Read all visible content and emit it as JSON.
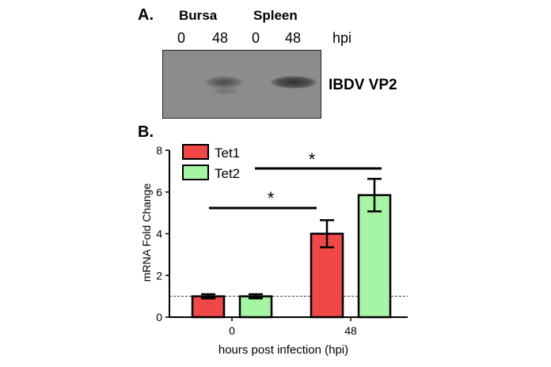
{
  "panel_a": {
    "label": "A.",
    "tissues": [
      "Bursa",
      "Spleen"
    ],
    "lanes": [
      "0",
      "48",
      "0",
      "48"
    ],
    "unit": "hpi",
    "band_label": "IBDV VP2"
  },
  "panel_b": {
    "label": "B."
  },
  "colors": {
    "tet1": "#f04747",
    "tet2": "#a5f5a5",
    "blot_bg": "#8c8c8c",
    "band": "#3a3a3a"
  },
  "chart_data": {
    "type": "bar",
    "categories": [
      "0",
      "48"
    ],
    "series": [
      {
        "name": "Tet1",
        "values": [
          1.0,
          4.0
        ],
        "errors": [
          0.1,
          0.65
        ]
      },
      {
        "name": "Tet2",
        "values": [
          1.0,
          5.85
        ],
        "errors": [
          0.1,
          0.78
        ]
      }
    ],
    "xlabel": "hours post infection (hpi)",
    "ylabel": "mRNA Fold Change",
    "ylim": [
      0,
      8
    ],
    "yticks": [
      "0",
      "2",
      "4",
      "6",
      "8"
    ],
    "reference_line": 1,
    "legend": "top-left",
    "significance": [
      {
        "label": "*",
        "from": "Tet1 0",
        "to": "Tet1 48"
      },
      {
        "label": "*",
        "from": "Tet2 0",
        "to": "Tet2 48"
      }
    ]
  }
}
